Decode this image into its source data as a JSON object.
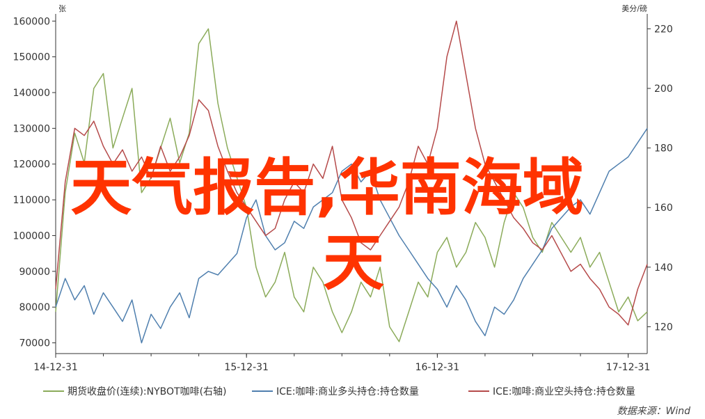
{
  "overlay_text": {
    "line1": "天气报告,华南海域",
    "line2": "天"
  },
  "source_text": "数据来源：Wind",
  "colors": {
    "series1": "#8bab5a",
    "series2": "#4f7fae",
    "series3": "#b54a4a",
    "overlay": "#ff3300",
    "axis": "#333333"
  },
  "chart_data": {
    "type": "line",
    "left_axis": {
      "unit": "张",
      "range": [
        67000,
        162000
      ],
      "ticks": [
        70000,
        80000,
        90000,
        100000,
        110000,
        120000,
        130000,
        140000,
        150000,
        160000
      ],
      "tick_labels": [
        "70000",
        "80000",
        "90000",
        "100000",
        "110000",
        "120000",
        "130000",
        "140000",
        "150000",
        "160000"
      ]
    },
    "right_axis": {
      "unit": "美分/磅",
      "range": [
        111,
        225
      ],
      "ticks": [
        120,
        140,
        160,
        180,
        200,
        220
      ],
      "tick_labels": [
        "120",
        "140",
        "160",
        "180",
        "200",
        "220"
      ]
    },
    "x_axis": {
      "range": [
        2014.0,
        2017.1
      ],
      "ticks": [
        2014.0,
        2015.0,
        2016.0,
        2017.0
      ],
      "tick_labels": [
        "14-12-31",
        "15-12-31",
        "16-12-31",
        "17-12-31"
      ]
    },
    "series": [
      {
        "name": "期货收盘价(连续):NYBOT咖啡(右轴)",
        "axis": "right",
        "color": "#8bab5a",
        "x": [
          2014.0,
          2014.05,
          2014.1,
          2014.15,
          2014.2,
          2014.25,
          2014.3,
          2014.35,
          2014.4,
          2014.45,
          2014.5,
          2014.55,
          2014.6,
          2014.65,
          2014.7,
          2014.75,
          2014.8,
          2014.85,
          2014.9,
          2014.95,
          2015.0,
          2015.05,
          2015.1,
          2015.15,
          2015.2,
          2015.25,
          2015.3,
          2015.35,
          2015.4,
          2015.45,
          2015.5,
          2015.55,
          2015.6,
          2015.65,
          2015.7,
          2015.75,
          2015.8,
          2015.85,
          2015.9,
          2015.95,
          2016.0,
          2016.05,
          2016.1,
          2016.15,
          2016.2,
          2016.25,
          2016.3,
          2016.35,
          2016.4,
          2016.45,
          2016.5,
          2016.55,
          2016.6,
          2016.65,
          2016.7,
          2016.75,
          2016.8,
          2016.85,
          2016.9,
          2016.95,
          2017.0,
          2017.05,
          2017.1
        ],
        "values": [
          125,
          165,
          185,
          175,
          200,
          205,
          180,
          190,
          200,
          165,
          170,
          180,
          190,
          175,
          185,
          215,
          220,
          195,
          180,
          170,
          160,
          140,
          130,
          135,
          145,
          130,
          125,
          140,
          135,
          125,
          118,
          125,
          135,
          130,
          140,
          120,
          115,
          125,
          135,
          130,
          145,
          150,
          140,
          145,
          155,
          150,
          140,
          155,
          165,
          160,
          150,
          145,
          155,
          150,
          145,
          150,
          140,
          145,
          135,
          125,
          130,
          122,
          125
        ]
      },
      {
        "name": "ICE:咖啡:商业多头持仓:持仓数量",
        "axis": "left",
        "color": "#4f7fae",
        "x": [
          2014.0,
          2014.05,
          2014.1,
          2014.15,
          2014.2,
          2014.25,
          2014.3,
          2014.35,
          2014.4,
          2014.45,
          2014.5,
          2014.55,
          2014.6,
          2014.65,
          2014.7,
          2014.75,
          2014.8,
          2014.85,
          2014.9,
          2014.95,
          2015.0,
          2015.05,
          2015.1,
          2015.15,
          2015.2,
          2015.25,
          2015.3,
          2015.35,
          2015.4,
          2015.45,
          2015.5,
          2015.55,
          2015.6,
          2015.65,
          2015.7,
          2015.75,
          2015.8,
          2015.85,
          2015.9,
          2015.95,
          2016.0,
          2016.05,
          2016.1,
          2016.15,
          2016.2,
          2016.25,
          2016.3,
          2016.35,
          2016.4,
          2016.45,
          2016.5,
          2016.55,
          2016.6,
          2016.65,
          2016.7,
          2016.75,
          2016.8,
          2016.85,
          2016.9,
          2016.95,
          2017.0,
          2017.05,
          2017.1
        ],
        "values": [
          80000,
          88000,
          82000,
          86000,
          78000,
          84000,
          80000,
          76000,
          82000,
          70000,
          78000,
          74000,
          80000,
          84000,
          77000,
          88000,
          90000,
          89000,
          92000,
          95000,
          105000,
          110000,
          100000,
          96000,
          98000,
          104000,
          102000,
          108000,
          110000,
          112000,
          118000,
          120000,
          115000,
          118000,
          110000,
          105000,
          100000,
          96000,
          92000,
          88000,
          85000,
          80000,
          86000,
          82000,
          76000,
          72000,
          80000,
          78000,
          82000,
          88000,
          92000,
          96000,
          102000,
          105000,
          108000,
          110000,
          106000,
          112000,
          118000,
          120000,
          122000,
          126000,
          130000
        ]
      },
      {
        "name": "ICE:咖啡:商业空头持仓:持仓数量",
        "axis": "left",
        "color": "#b54a4a",
        "x": [
          2014.0,
          2014.05,
          2014.1,
          2014.15,
          2014.2,
          2014.25,
          2014.3,
          2014.35,
          2014.4,
          2014.45,
          2014.5,
          2014.55,
          2014.6,
          2014.65,
          2014.7,
          2014.75,
          2014.8,
          2014.85,
          2014.9,
          2014.95,
          2015.0,
          2015.05,
          2015.1,
          2015.15,
          2015.2,
          2015.25,
          2015.3,
          2015.35,
          2015.4,
          2015.45,
          2015.5,
          2015.55,
          2015.6,
          2015.65,
          2015.7,
          2015.75,
          2015.8,
          2015.85,
          2015.9,
          2015.95,
          2016.0,
          2016.05,
          2016.1,
          2016.15,
          2016.2,
          2016.25,
          2016.3,
          2016.35,
          2016.4,
          2016.45,
          2016.5,
          2016.55,
          2016.6,
          2016.65,
          2016.7,
          2016.75,
          2016.8,
          2016.85,
          2016.9,
          2016.95,
          2017.0,
          2017.05,
          2017.1
        ],
        "values": [
          85000,
          115000,
          130000,
          128000,
          132000,
          125000,
          120000,
          124000,
          118000,
          122000,
          116000,
          125000,
          118000,
          122000,
          128000,
          138000,
          135000,
          125000,
          118000,
          112000,
          108000,
          104000,
          100000,
          102000,
          110000,
          115000,
          112000,
          120000,
          116000,
          125000,
          110000,
          105000,
          98000,
          96000,
          100000,
          104000,
          108000,
          115000,
          125000,
          120000,
          130000,
          150000,
          160000,
          145000,
          130000,
          120000,
          115000,
          110000,
          105000,
          102000,
          98000,
          96000,
          100000,
          95000,
          90000,
          92000,
          88000,
          85000,
          80000,
          78000,
          75000,
          85000,
          92000
        ]
      }
    ]
  }
}
